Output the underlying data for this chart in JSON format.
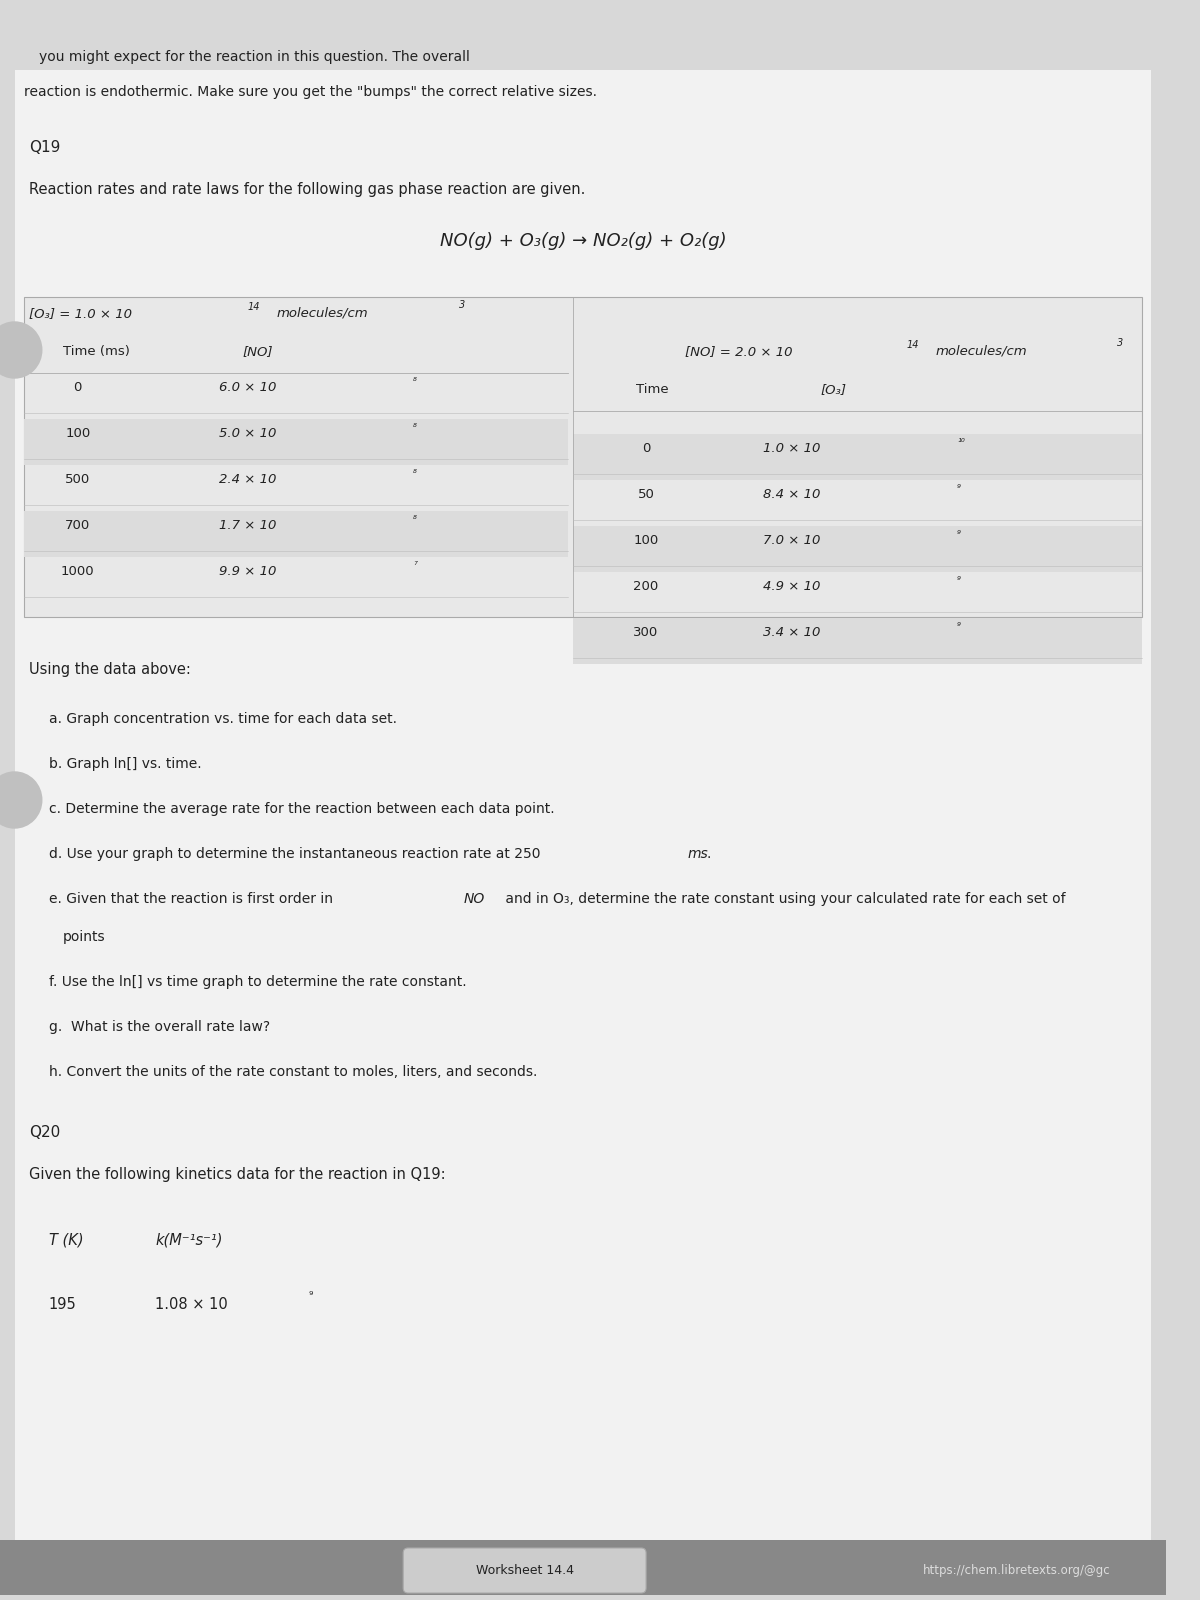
{
  "bg_color": "#d8d8d8",
  "page_bg": "#e8e8e8",
  "paper_bg": "#f0f0f0",
  "header_text": "reaction is endothermic. Make sure you get the \"bumps\" the correct relative sizes.",
  "header_text2": "you might expect for the reaction in this question. The overall",
  "q19_label": "Q19",
  "q19_intro": "Reaction rates and rate laws for the following gas phase reaction are given.",
  "reaction_eq": "NO(g) + O₃(g) → NO₂(g) + O₂(g)",
  "table1_header": "[O₃] = 1.0 × 10¹⁴ molecules/cm³",
  "table1_col1": "Time (ms)",
  "table1_col2": "[NO]",
  "table1_data": [
    [
      "0",
      "6.0 × 10⁸"
    ],
    [
      "100",
      "5.0 × 10⁸"
    ],
    [
      "500",
      "2.4 × 10⁸"
    ],
    [
      "700",
      "1.7 × 10⁸"
    ],
    [
      "1000",
      "9.9 × 10⁷"
    ]
  ],
  "table2_header": "[NO] = 2.0 × 10¹⁴ molecules/cm³",
  "table2_col1": "Time",
  "table2_col2": "[O₃]",
  "table2_data": [
    [
      "0",
      "1.0 × 10¹⁰"
    ],
    [
      "50",
      "8.4 × 10⁹"
    ],
    [
      "100",
      "7.0 × 10⁹"
    ],
    [
      "200",
      "4.9 × 10⁹"
    ],
    [
      "300",
      "3.4 × 10⁹"
    ]
  ],
  "using_data": "Using the data above:",
  "items_a_h": [
    "a. Graph concentration vs. time for each data set.",
    "b. Graph ln[] vs. time.",
    "c. Determine the average rate for the reaction between each data point.",
    "d. Use your graph to determine the instantaneous reaction rate at 250 ms.",
    "e. Given that the reaction is first order in NO and in O₃, determine the rate constant using your calculated rate for each set of\n    points",
    "f. Use the ln[] vs time graph to determine the rate constant.",
    "g.  What is the overall rate law?",
    "h. Convert the units of the rate constant to moles, liters, and seconds."
  ],
  "q20_label": "Q20",
  "q20_intro": "Given the following kinetics data for the reaction in Q19:",
  "q20_col1": "T (K)",
  "q20_col2": "k(M⁻¹s⁻¹)",
  "q20_data": [
    [
      "195",
      "1.08 × 10⁹"
    ]
  ],
  "footer_left": "Worksheet 14.4",
  "footer_right": "https://chem.libretexts.org/@gc",
  "footer_bg": "#888888"
}
